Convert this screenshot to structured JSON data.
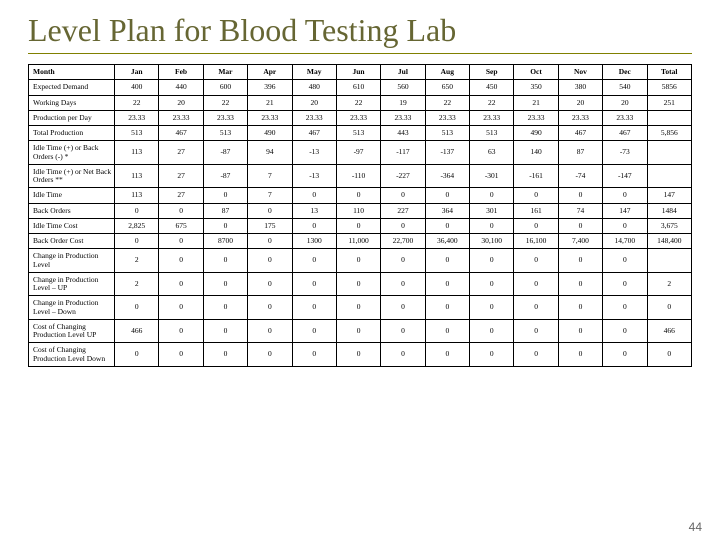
{
  "title": "Level Plan for Blood Testing Lab",
  "page_number": "44",
  "table": {
    "columns": [
      "Month",
      "Jan",
      "Feb",
      "Mar",
      "Apr",
      "May",
      "Jun",
      "Jul",
      "Aug",
      "Sep",
      "Oct",
      "Nov",
      "Dec",
      "Total"
    ],
    "rows": [
      [
        "Expected Demand",
        "400",
        "440",
        "600",
        "396",
        "480",
        "610",
        "560",
        "650",
        "450",
        "350",
        "380",
        "540",
        "5856"
      ],
      [
        "Working Days",
        "22",
        "20",
        "22",
        "21",
        "20",
        "22",
        "19",
        "22",
        "22",
        "21",
        "20",
        "20",
        "251"
      ],
      [
        "Production per Day",
        "23.33",
        "23.33",
        "23.33",
        "23.33",
        "23.33",
        "23.33",
        "23.33",
        "23.33",
        "23.33",
        "23.33",
        "23.33",
        "23.33",
        ""
      ],
      [
        "Total Production",
        "513",
        "467",
        "513",
        "490",
        "467",
        "513",
        "443",
        "513",
        "513",
        "490",
        "467",
        "467",
        "5,856"
      ],
      [
        "Idle Time (+) or Back Orders (-) *",
        "113",
        "27",
        "-87",
        "94",
        "-13",
        "-97",
        "-117",
        "-137",
        "63",
        "140",
        "87",
        "-73",
        ""
      ],
      [
        "Idle Time (+) or Net Back Orders **",
        "113",
        "27",
        "-87",
        "7",
        "-13",
        "-110",
        "-227",
        "-364",
        "-301",
        "-161",
        "-74",
        "-147",
        ""
      ],
      [
        "Idle Time",
        "113",
        "27",
        "0",
        "7",
        "0",
        "0",
        "0",
        "0",
        "0",
        "0",
        "0",
        "0",
        "147"
      ],
      [
        "Back Orders",
        "0",
        "0",
        "87",
        "0",
        "13",
        "110",
        "227",
        "364",
        "301",
        "161",
        "74",
        "147",
        "1484"
      ],
      [
        "Idle Time Cost",
        "2,825",
        "675",
        "0",
        "175",
        "0",
        "0",
        "0",
        "0",
        "0",
        "0",
        "0",
        "0",
        "3,675"
      ],
      [
        "Back Order Cost",
        "0",
        "0",
        "8700",
        "0",
        "1300",
        "11,000",
        "22,700",
        "36,400",
        "30,100",
        "16,100",
        "7,400",
        "14,700",
        "148,400"
      ],
      [
        "Change in Production Level",
        "2",
        "0",
        "0",
        "0",
        "0",
        "0",
        "0",
        "0",
        "0",
        "0",
        "0",
        "0",
        ""
      ],
      [
        "Change in Production Level – UP",
        "2",
        "0",
        "0",
        "0",
        "0",
        "0",
        "0",
        "0",
        "0",
        "0",
        "0",
        "0",
        "2"
      ],
      [
        "Change in Production Level – Down",
        "0",
        "0",
        "0",
        "0",
        "0",
        "0",
        "0",
        "0",
        "0",
        "0",
        "0",
        "0",
        "0"
      ],
      [
        "Cost of Changing Production Level UP",
        "466",
        "0",
        "0",
        "0",
        "0",
        "0",
        "0",
        "0",
        "0",
        "0",
        "0",
        "0",
        "466"
      ],
      [
        "Cost of Changing Production Level Down",
        "0",
        "0",
        "0",
        "0",
        "0",
        "0",
        "0",
        "0",
        "0",
        "0",
        "0",
        "0",
        "0"
      ]
    ]
  },
  "style": {
    "title_color": "#666633",
    "accent_color": "#808000",
    "border_color": "#000000",
    "bg": "#ffffff",
    "title_fontsize": 32,
    "cell_fontsize": 7.5
  }
}
